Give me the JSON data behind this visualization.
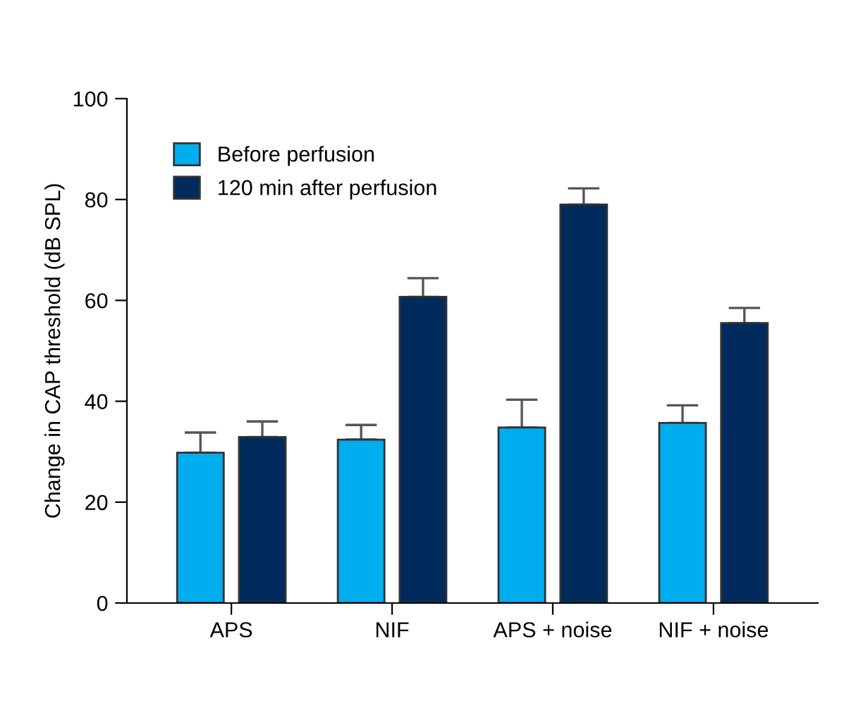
{
  "chart_data": {
    "type": "bar",
    "ylabel": "Change in CAP threshold (dB SPL)",
    "categories": [
      "APS",
      "NIF",
      "APS + noise",
      "NIF + noise"
    ],
    "series": [
      {
        "name": "Before perfusion",
        "color": "#00aeef",
        "values": [
          29.8,
          32.4,
          34.8,
          35.7
        ],
        "errors": [
          [
            29.8,
            33.8
          ],
          [
            32.4,
            35.3
          ],
          [
            34.8,
            40.3
          ],
          [
            35.7,
            39.2
          ]
        ]
      },
      {
        "name": "120 min after perfusion",
        "color": "#002b5c",
        "values": [
          32.9,
          60.7,
          79.0,
          55.5
        ],
        "errors": [
          [
            32.9,
            36.0
          ],
          [
            60.7,
            64.4
          ],
          [
            79.0,
            82.2
          ],
          [
            55.5,
            58.5
          ]
        ]
      }
    ],
    "ylim": [
      0,
      100
    ],
    "yticks": [
      0,
      20,
      40,
      60,
      80,
      100
    ],
    "grid": false,
    "legend": "top left"
  }
}
